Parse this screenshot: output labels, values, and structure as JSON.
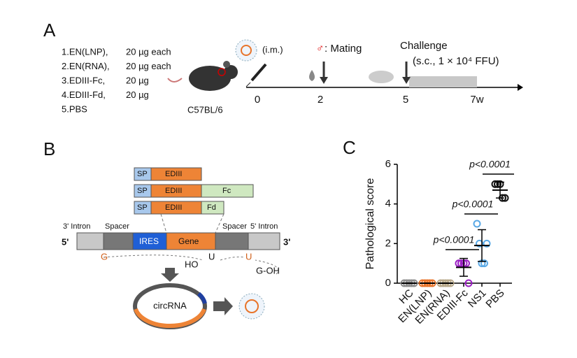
{
  "panel_a": {
    "label": "A",
    "groups": [
      {
        "name": "1.EN(LNP),",
        "dose": "20 µg each"
      },
      {
        "name": "2.EN(RNA),",
        "dose": "20 µg each"
      },
      {
        "name": "3.EDIII-Fc,",
        "dose": "20 µg"
      },
      {
        "name": "4.EDIII-Fd,",
        "dose": "20 µg"
      },
      {
        "name": "5.PBS",
        "dose": null
      }
    ],
    "strain": "C57BL/6",
    "route": "(i.m.)",
    "mating_symbol": "♂",
    "mating": ": Mating",
    "challenge": "Challenge",
    "challenge_detail": "(s.c., 1 × 10⁴ FFU)",
    "timepoints": [
      "0",
      "2",
      "5",
      "7w"
    ]
  },
  "panel_b": {
    "label": "B",
    "sp": "SP",
    "edIII": "EDIII",
    "fc": "Fc",
    "fd": "Fd",
    "intron3": "3' Intron",
    "spacer": "Spacer",
    "ires": "IRES",
    "gene": "Gene",
    "intron5": "5' Intron",
    "end5": "5'",
    "end3": "3'",
    "g": "G",
    "u": "U",
    "ho": "HO",
    "goh": "G-OH",
    "circ": "circRNA"
  },
  "chart_data": {
    "type": "scatter",
    "panel_label": "C",
    "y_label": "Pathological score",
    "categories": [
      "HC",
      "EN(LNP)",
      "EN(RNA)",
      "EDIII-Fc",
      "NS1",
      "PBS"
    ],
    "series": [
      {
        "color": "#8c8c8c",
        "values": [
          0,
          0,
          0,
          0,
          0
        ],
        "mean": 0,
        "sd": 0
      },
      {
        "color": "#e8742a",
        "values": [
          0,
          0,
          0,
          0,
          0
        ],
        "mean": 0,
        "sd": 0
      },
      {
        "color": "#b8a98a",
        "values": [
          0,
          0,
          0,
          0,
          0
        ],
        "mean": 0,
        "sd": 0
      },
      {
        "color": "#9b1fc4",
        "values": [
          1,
          1,
          1,
          1,
          0
        ],
        "mean": 0.8,
        "sd": 0.45
      },
      {
        "color": "#5aa9e6",
        "values": [
          3,
          2,
          1,
          1,
          2
        ],
        "mean": 1.9,
        "sd": 0.8
      },
      {
        "color": "#111111",
        "values": [
          5,
          5,
          5,
          4.3,
          4.3
        ],
        "mean": 4.7,
        "sd": 0.4
      }
    ],
    "ylim": [
      0,
      6
    ],
    "yticks": [
      0,
      2,
      4,
      6
    ],
    "annotations": [
      "p<0.0001",
      "p<0.0001",
      "p<0.0001"
    ]
  }
}
